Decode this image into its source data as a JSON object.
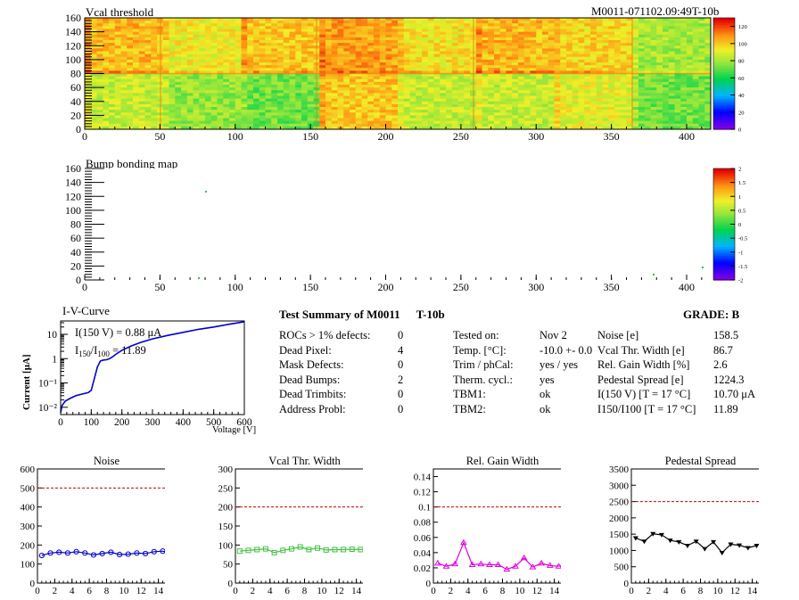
{
  "header": {
    "module_id": "M0011-071102.09:49T-10b"
  },
  "maps": {
    "vcal": {
      "title": "Vcal threshold",
      "xticks": [
        "0",
        "50",
        "100",
        "150",
        "200",
        "250",
        "300",
        "350",
        "400"
      ],
      "yticks": [
        "0",
        "20",
        "40",
        "60",
        "80",
        "100",
        "120",
        "140",
        "160"
      ],
      "zticks": [
        "0",
        "20",
        "40",
        "60",
        "80",
        "100",
        "120"
      ]
    },
    "bump": {
      "title": "Bump bonding map",
      "xticks": [
        "0",
        "50",
        "100",
        "150",
        "200",
        "250",
        "300",
        "350",
        "400"
      ],
      "yticks": [
        "0",
        "20",
        "40",
        "60",
        "80",
        "100",
        "120",
        "140",
        "160"
      ],
      "zticks": [
        "-2",
        "-1.5",
        "-1",
        "-0.5",
        "0",
        "0.5",
        "1",
        "1.5",
        "2"
      ]
    }
  },
  "iv": {
    "title": "I-V-Curve",
    "ylabel": "Current [μA]",
    "xlabel": "Voltage [V]",
    "annotation1": "I(150 V) = 0.88 μA",
    "annotation2_main": "I",
    "annotation2_sub1": "150",
    "annotation2_slash": "/I",
    "annotation2_sub2": "100",
    "annotation2_val": " = 11.89",
    "xticks": [
      "0",
      "100",
      "200",
      "300",
      "400",
      "500",
      "600"
    ],
    "yticks": [
      "10⁻²",
      "10⁻¹",
      "1",
      "10"
    ]
  },
  "summary": {
    "title": "Test Summary of M0011",
    "subtitle": "T-10b",
    "grade_label": "GRADE:",
    "grade": "B",
    "left": [
      {
        "label": "ROCs > 1% defects:",
        "value": "0"
      },
      {
        "label": "Dead Pixel:",
        "value": "4"
      },
      {
        "label": "Mask Defects:",
        "value": "0"
      },
      {
        "label": "Dead Bumps:",
        "value": "2"
      },
      {
        "label": "Dead Trimbits:",
        "value": "0"
      },
      {
        "label": "Address Probl:",
        "value": "0"
      }
    ],
    "middle": [
      {
        "label": "Tested on:",
        "value": "Nov 2"
      },
      {
        "label": "Temp. [°C]:",
        "value": "-10.0 +- 0.0"
      },
      {
        "label": "Trim / phCal:",
        "value": "yes / yes"
      },
      {
        "label": "Therm. cycl.:",
        "value": "yes"
      },
      {
        "label": "TBM1:",
        "value": "ok"
      },
      {
        "label": "TBM2:",
        "value": "ok"
      }
    ],
    "right": [
      {
        "label": "Noise [e]",
        "value": "158.5"
      },
      {
        "label": "Vcal Thr. Width [e]",
        "value": "86.7"
      },
      {
        "label": "Rel. Gain Width [%]",
        "value": "2.6"
      },
      {
        "label": "Pedestal Spread [e]",
        "value": "1224.3"
      },
      {
        "label": "I(150 V)  [T = 17 °C]",
        "value": "10.70 μA"
      },
      {
        "label": "I150/I100  [T = 17 °C]",
        "value": "11.89"
      }
    ]
  },
  "colors": {
    "blue": "#0000cc",
    "green": "#44c044",
    "magenta": "#e000e0",
    "black": "#000000",
    "limit": "#cc0000"
  },
  "chart_data": [
    {
      "type": "line",
      "title": "Noise",
      "color": "blue",
      "ylim": [
        0,
        600
      ],
      "limit": 500,
      "yticks": [
        "0",
        "100",
        "200",
        "300",
        "400",
        "500",
        "600"
      ],
      "xticks": [
        "0",
        "2",
        "4",
        "6",
        "8",
        "10",
        "12",
        "14",
        "16"
      ],
      "x": [
        0,
        1,
        2,
        3,
        4,
        5,
        6,
        7,
        8,
        9,
        10,
        11,
        12,
        13,
        14,
        15
      ],
      "values": [
        145,
        158,
        162,
        158,
        165,
        158,
        148,
        155,
        162,
        150,
        152,
        158,
        155,
        165,
        168,
        158
      ]
    },
    {
      "type": "line",
      "title": "Vcal Thr. Width",
      "color": "green",
      "ylim": [
        0,
        300
      ],
      "limit": 200,
      "yticks": [
        "0",
        "50",
        "100",
        "150",
        "200",
        "250",
        "300"
      ],
      "xticks": [
        "0",
        "2",
        "4",
        "6",
        "8",
        "10",
        "12",
        "14",
        "16"
      ],
      "x": [
        0,
        1,
        2,
        3,
        4,
        5,
        6,
        7,
        8,
        9,
        10,
        11,
        12,
        13,
        14,
        15
      ],
      "values": [
        84,
        86,
        88,
        90,
        80,
        86,
        90,
        95,
        88,
        92,
        87,
        88,
        88,
        89,
        88,
        90
      ]
    },
    {
      "type": "line",
      "title": "Rel. Gain Width",
      "color": "magenta",
      "ylim": [
        0,
        0.15
      ],
      "limit": 0.1,
      "yticks": [
        "0",
        "0.02",
        "0.04",
        "0.06",
        "0.08",
        "0.1",
        "0.12",
        "0.14"
      ],
      "xticks": [
        "0",
        "2",
        "4",
        "6",
        "8",
        "10",
        "12",
        "14",
        "16"
      ],
      "x": [
        0,
        1,
        2,
        3,
        4,
        5,
        6,
        7,
        8,
        9,
        10,
        11,
        12,
        13,
        14,
        15
      ],
      "values": [
        0.026,
        0.022,
        0.025,
        0.053,
        0.024,
        0.025,
        0.024,
        0.024,
        0.018,
        0.022,
        0.033,
        0.021,
        0.026,
        0.023,
        0.022,
        0.026
      ]
    },
    {
      "type": "line",
      "title": "Pedestal Spread",
      "color": "black",
      "ylim": [
        0,
        3500
      ],
      "limit": 2500,
      "yticks": [
        "0",
        "500",
        "1000",
        "1500",
        "2000",
        "2500",
        "3000",
        "3500"
      ],
      "xticks": [
        "0",
        "2",
        "4",
        "6",
        "8",
        "10",
        "12",
        "14",
        "16"
      ],
      "x": [
        0,
        1,
        2,
        3,
        4,
        5,
        6,
        7,
        8,
        9,
        10,
        11,
        12,
        13,
        14,
        15
      ],
      "values": [
        1380,
        1280,
        1510,
        1480,
        1310,
        1260,
        1150,
        1280,
        1050,
        1260,
        930,
        1190,
        1160,
        1080,
        1150,
        1320
      ]
    }
  ]
}
